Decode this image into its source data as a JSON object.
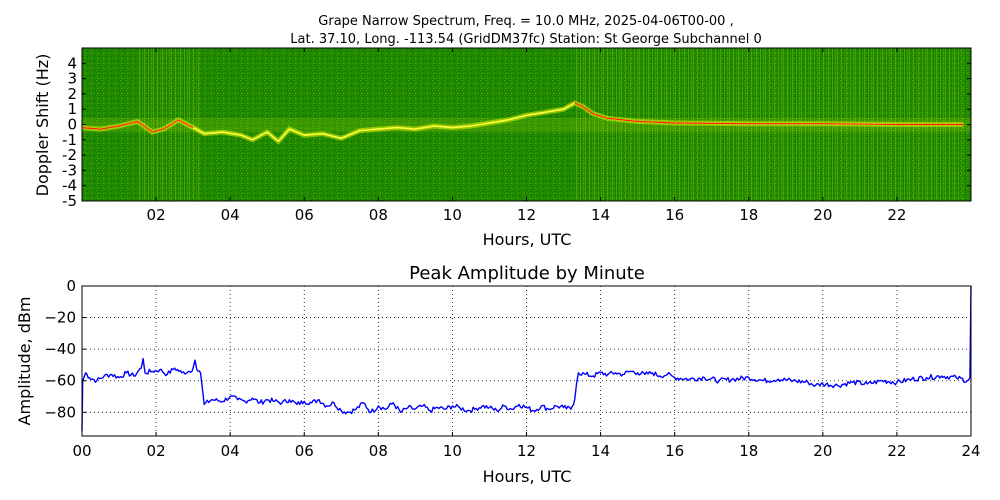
{
  "figure": {
    "title_line1": "Grape Narrow Spectrum, Freq. = 10.0 MHz, 2025-04-06T00-00 ,",
    "title_line2": "Lat.  37.10, Long. -113.54 (GridDM37fc) Station: St George Subchannel 0"
  },
  "chart_data": [
    {
      "type": "heatmap",
      "title": "",
      "xlabel": "Hours, UTC",
      "ylabel": "Doppler Shift (Hz)",
      "xlim": [
        0,
        24
      ],
      "ylim": [
        -5,
        5
      ],
      "x_ticks": [
        {
          "v": 2,
          "label": "02"
        },
        {
          "v": 4,
          "label": "04"
        },
        {
          "v": 6,
          "label": "06"
        },
        {
          "v": 8,
          "label": "08"
        },
        {
          "v": 10,
          "label": "10"
        },
        {
          "v": 12,
          "label": "12"
        },
        {
          "v": 14,
          "label": "14"
        },
        {
          "v": 16,
          "label": "16"
        },
        {
          "v": 18,
          "label": "18"
        },
        {
          "v": 20,
          "label": "20"
        },
        {
          "v": 22,
          "label": "22"
        }
      ],
      "y_ticks": [
        {
          "v": 4,
          "label": "4"
        },
        {
          "v": 3,
          "label": "3"
        },
        {
          "v": 2,
          "label": "2"
        },
        {
          "v": 1,
          "label": "1"
        },
        {
          "v": 0,
          "label": "0"
        },
        {
          "v": -1,
          "label": "-1"
        },
        {
          "v": -2,
          "label": "-2"
        },
        {
          "v": -3,
          "label": "-3"
        },
        {
          "v": -4,
          "label": "-4"
        },
        {
          "v": -5,
          "label": "-5"
        }
      ],
      "colors": {
        "background": "#1f8a00",
        "signal": "#e8f000",
        "peak": "#ff2000"
      },
      "noisy_periods_hours": [
        [
          1.5,
          3.2
        ],
        [
          13.3,
          23.8
        ]
      ],
      "doppler_trace": {
        "hours": [
          0,
          0.5,
          1,
          1.5,
          1.9,
          2.2,
          2.6,
          3.0,
          3.3,
          3.8,
          4.3,
          4.6,
          5.0,
          5.3,
          5.6,
          6.0,
          6.5,
          7.0,
          7.5,
          8.0,
          8.5,
          9.0,
          9.5,
          10.0,
          10.5,
          11.0,
          11.5,
          12.0,
          12.5,
          13.0,
          13.3,
          13.5,
          13.8,
          14.2,
          15,
          16,
          18,
          20,
          22,
          23.8
        ],
        "hz": [
          -0.2,
          -0.3,
          -0.1,
          0.2,
          -0.5,
          -0.3,
          0.3,
          -0.2,
          -0.6,
          -0.5,
          -0.7,
          -1.0,
          -0.5,
          -1.1,
          -0.3,
          -0.7,
          -0.6,
          -0.9,
          -0.4,
          -0.3,
          -0.2,
          -0.3,
          -0.1,
          -0.2,
          -0.1,
          0.1,
          0.3,
          0.6,
          0.8,
          1.0,
          1.4,
          1.2,
          0.7,
          0.4,
          0.2,
          0.1,
          0.05,
          0.05,
          0.0,
          0.0
        ]
      }
    },
    {
      "type": "line",
      "title": "Peak Amplitude by Minute",
      "xlabel": "Hours, UTC",
      "ylabel": "Amplitude, dBm",
      "xlim": [
        0,
        24
      ],
      "ylim": [
        -95,
        0
      ],
      "grid": true,
      "x_ticks": [
        {
          "v": 0,
          "label": "00"
        },
        {
          "v": 2,
          "label": "02"
        },
        {
          "v": 4,
          "label": "04"
        },
        {
          "v": 6,
          "label": "06"
        },
        {
          "v": 8,
          "label": "08"
        },
        {
          "v": 10,
          "label": "10"
        },
        {
          "v": 12,
          "label": "12"
        },
        {
          "v": 14,
          "label": "14"
        },
        {
          "v": 16,
          "label": "16"
        },
        {
          "v": 18,
          "label": "18"
        },
        {
          "v": 20,
          "label": "20"
        },
        {
          "v": 22,
          "label": "22"
        },
        {
          "v": 24,
          "label": "24"
        }
      ],
      "y_ticks": [
        {
          "v": 0,
          "label": "0"
        },
        {
          "v": -20,
          "label": "−20"
        },
        {
          "v": -40,
          "label": "−40"
        },
        {
          "v": -60,
          "label": "−60"
        },
        {
          "v": -80,
          "label": "−80"
        }
      ],
      "series": [
        {
          "color": "#0000ff",
          "x": [
            0.0,
            0.02,
            0.1,
            0.2,
            0.4,
            0.6,
            0.8,
            1.0,
            1.2,
            1.4,
            1.6,
            1.65,
            1.7,
            1.9,
            2.1,
            2.3,
            2.5,
            2.7,
            2.9,
            3.0,
            3.05,
            3.1,
            3.2,
            3.25,
            3.3,
            3.5,
            3.8,
            4.0,
            4.2,
            4.4,
            4.6,
            4.8,
            5.0,
            5.2,
            5.4,
            5.6,
            5.8,
            6.0,
            6.2,
            6.4,
            6.6,
            6.8,
            7.0,
            7.2,
            7.4,
            7.6,
            7.8,
            8.0,
            8.2,
            8.4,
            8.6,
            8.8,
            9.0,
            9.2,
            9.4,
            9.6,
            9.8,
            10.0,
            10.2,
            10.4,
            10.6,
            10.8,
            11.0,
            11.2,
            11.4,
            11.6,
            11.8,
            12.0,
            12.2,
            12.4,
            12.6,
            12.8,
            13.0,
            13.2,
            13.3,
            13.35,
            13.4,
            13.6,
            13.8,
            14.0,
            14.2,
            14.4,
            14.6,
            14.8,
            15.0,
            15.2,
            15.4,
            15.6,
            15.8,
            16.0,
            16.4,
            16.8,
            17.2,
            17.6,
            18.0,
            18.4,
            18.8,
            19.2,
            19.6,
            19.8,
            20.0,
            20.4,
            20.8,
            21.2,
            21.6,
            22.0,
            22.4,
            22.8,
            23.2,
            23.6,
            23.9,
            23.97,
            24.0
          ],
          "y": [
            -92,
            -60,
            -55,
            -58,
            -60,
            -57,
            -56,
            -58,
            -55,
            -57,
            -52,
            -46,
            -55,
            -54,
            -53,
            -56,
            -52,
            -55,
            -54,
            -52,
            -47,
            -53,
            -55,
            -65,
            -75,
            -72,
            -73,
            -70,
            -72,
            -73,
            -71,
            -74,
            -72,
            -73,
            -74,
            -72,
            -75,
            -73,
            -74,
            -72,
            -76,
            -74,
            -79,
            -80,
            -78,
            -74,
            -80,
            -76,
            -78,
            -74,
            -80,
            -77,
            -78,
            -76,
            -79,
            -77,
            -78,
            -76,
            -77,
            -79,
            -78,
            -76,
            -77,
            -79,
            -76,
            -78,
            -75,
            -77,
            -79,
            -76,
            -78,
            -76,
            -77,
            -78,
            -72,
            -62,
            -55,
            -56,
            -57,
            -55,
            -56,
            -55,
            -56,
            -54,
            -55,
            -56,
            -55,
            -57,
            -56,
            -58,
            -59,
            -58,
            -60,
            -59,
            -58,
            -60,
            -59,
            -60,
            -61,
            -63,
            -62,
            -63,
            -61,
            -62,
            -60,
            -61,
            -59,
            -58,
            -57,
            -58,
            -60,
            -58,
            0
          ]
        }
      ]
    }
  ]
}
